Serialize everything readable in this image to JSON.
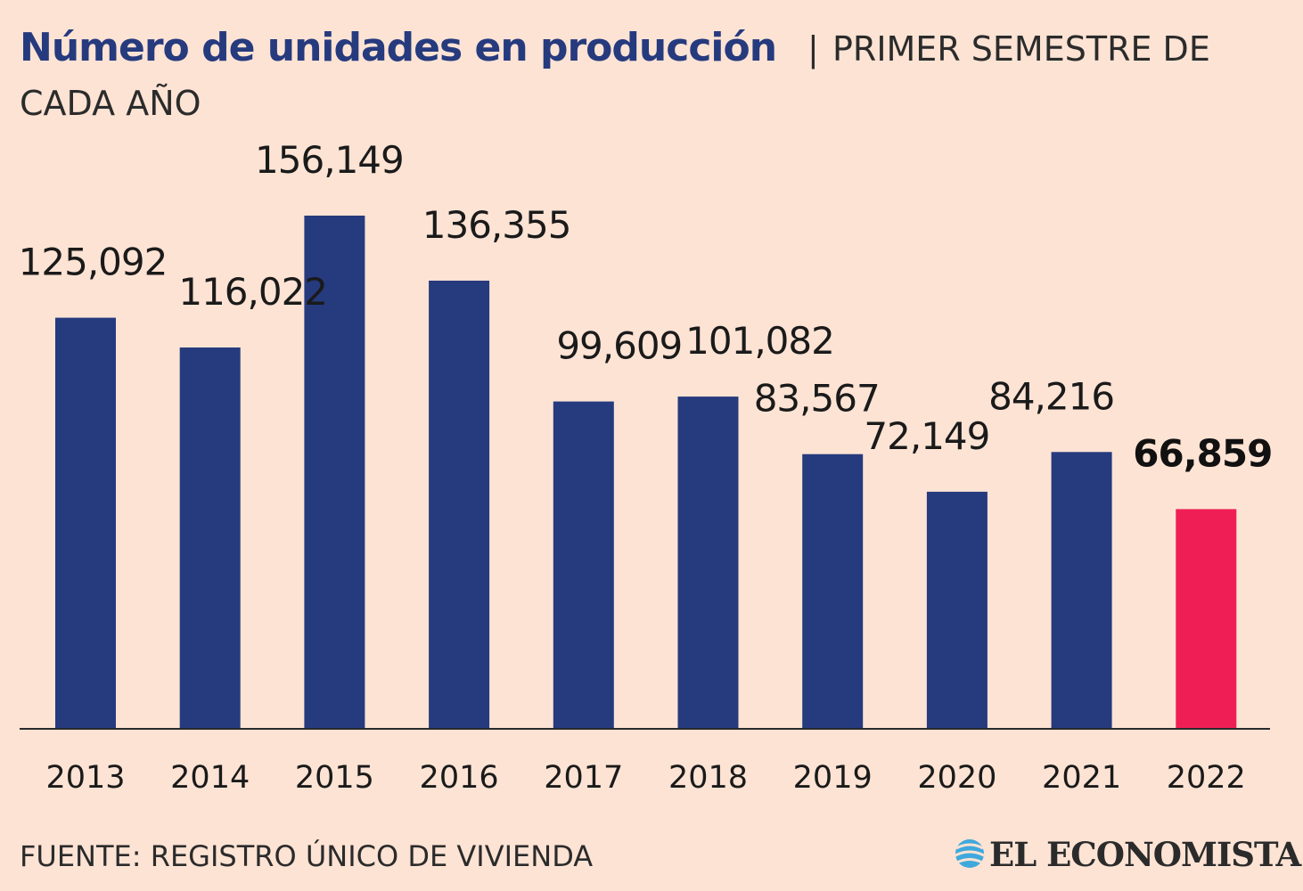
{
  "title": "Número de unidades en producción",
  "separator": "|",
  "subtitle_line1": "PRIMER SEMESTRE DE",
  "subtitle_line2": "CADA AÑO",
  "source": "FUENTE: REGISTRO ÚNICO DE VIVIENDA",
  "brand": "EL ECONOMISTA",
  "icons": {
    "brand_logo": "el-economista-globe-icon"
  },
  "colors": {
    "background": "#fde3d4",
    "bar": "#263a7e",
    "highlight": "#ef1f55",
    "title": "#263a7e"
  },
  "chart_data": {
    "type": "bar",
    "title": "Número de unidades en producción",
    "subtitle": "PRIMER SEMESTRE DE CADA AÑO",
    "categories": [
      "2013",
      "2014",
      "2015",
      "2016",
      "2017",
      "2018",
      "2019",
      "2020",
      "2021",
      "2022"
    ],
    "values": [
      125092,
      116022,
      156149,
      136355,
      99609,
      101082,
      83567,
      72149,
      84216,
      66859
    ],
    "value_labels": [
      "125,092",
      "116,022",
      "156,149",
      "136,355",
      "99,609",
      "101,082",
      "83,567",
      "72,149",
      "84,216",
      "66,859"
    ],
    "highlight_category": "2022",
    "xlabel": "",
    "ylabel": "",
    "ylim": [
      0,
      156149
    ],
    "grid": false,
    "legend": "none"
  }
}
